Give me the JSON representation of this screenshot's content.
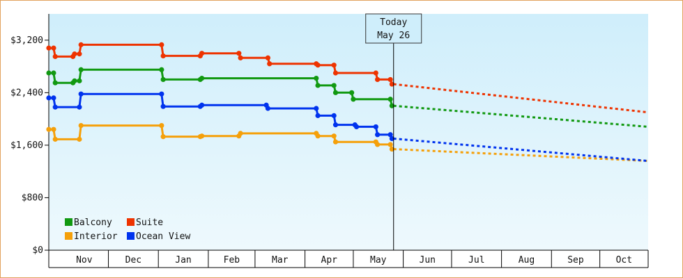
{
  "chart_data": {
    "type": "line",
    "title": "",
    "xlabel": "",
    "ylabel": "",
    "ylim": [
      0,
      3600
    ],
    "xlim": [
      "2023-10-25",
      "2024-10-31"
    ],
    "yticks": [
      0,
      800,
      1600,
      2400,
      3200
    ],
    "ytick_labels": [
      "$0",
      "$800",
      "$1,600",
      "$2,400",
      "$3,200"
    ],
    "month_labels": [
      "Nov",
      "Dec",
      "Jan",
      "Feb",
      "Mar",
      "Apr",
      "May",
      "Jun",
      "Jul",
      "Aug",
      "Sep",
      "Oct"
    ],
    "grid": false,
    "legend_position": "bottom-left",
    "today": {
      "title": "Today",
      "date_label": "May 26",
      "date": "2024-05-26"
    },
    "series": [
      {
        "name": "Balcony",
        "color": "#119911",
        "points": [
          [
            "2023-10-25",
            2700
          ],
          [
            "2023-10-28",
            2700
          ],
          [
            "2023-10-29",
            2550
          ],
          [
            "2023-11-09",
            2550
          ],
          [
            "2023-11-10",
            2580
          ],
          [
            "2023-11-13",
            2580
          ],
          [
            "2023-11-14",
            2750
          ],
          [
            "2024-01-03",
            2750
          ],
          [
            "2024-01-04",
            2600
          ],
          [
            "2024-01-27",
            2600
          ],
          [
            "2024-01-28",
            2620
          ],
          [
            "2024-04-08",
            2620
          ],
          [
            "2024-04-09",
            2510
          ],
          [
            "2024-04-19",
            2510
          ],
          [
            "2024-04-20",
            2400
          ],
          [
            "2024-04-30",
            2400
          ],
          [
            "2024-05-01",
            2300
          ],
          [
            "2024-05-24",
            2300
          ],
          [
            "2024-05-25",
            2200
          ],
          [
            "2024-05-26",
            2200
          ]
        ],
        "forecast": [
          [
            "2024-05-26",
            2200
          ],
          [
            "2024-10-31",
            1880
          ]
        ]
      },
      {
        "name": "Suite",
        "color": "#ee3300",
        "points": [
          [
            "2023-10-25",
            3080
          ],
          [
            "2023-10-28",
            3080
          ],
          [
            "2023-10-29",
            2950
          ],
          [
            "2023-11-09",
            2950
          ],
          [
            "2023-11-10",
            2990
          ],
          [
            "2023-11-13",
            2990
          ],
          [
            "2023-11-14",
            3130
          ],
          [
            "2024-01-03",
            3130
          ],
          [
            "2024-01-04",
            2960
          ],
          [
            "2024-01-27",
            2960
          ],
          [
            "2024-01-28",
            3000
          ],
          [
            "2024-02-20",
            3000
          ],
          [
            "2024-02-21",
            2930
          ],
          [
            "2024-03-09",
            2930
          ],
          [
            "2024-03-10",
            2840
          ],
          [
            "2024-04-08",
            2840
          ],
          [
            "2024-04-09",
            2820
          ],
          [
            "2024-04-19",
            2820
          ],
          [
            "2024-04-20",
            2700
          ],
          [
            "2024-05-15",
            2700
          ],
          [
            "2024-05-16",
            2600
          ],
          [
            "2024-05-24",
            2600
          ],
          [
            "2024-05-25",
            2530
          ],
          [
            "2024-05-26",
            2530
          ]
        ],
        "forecast": [
          [
            "2024-05-26",
            2530
          ],
          [
            "2024-10-31",
            2100
          ]
        ]
      },
      {
        "name": "Interior",
        "color": "#f5a00a",
        "points": [
          [
            "2023-10-25",
            1840
          ],
          [
            "2023-10-28",
            1840
          ],
          [
            "2023-10-29",
            1690
          ],
          [
            "2023-11-13",
            1690
          ],
          [
            "2023-11-14",
            1900
          ],
          [
            "2024-01-03",
            1900
          ],
          [
            "2024-01-04",
            1730
          ],
          [
            "2024-01-27",
            1730
          ],
          [
            "2024-01-28",
            1740
          ],
          [
            "2024-02-20",
            1740
          ],
          [
            "2024-02-21",
            1780
          ],
          [
            "2024-04-08",
            1780
          ],
          [
            "2024-04-09",
            1740
          ],
          [
            "2024-04-19",
            1740
          ],
          [
            "2024-04-20",
            1650
          ],
          [
            "2024-05-15",
            1650
          ],
          [
            "2024-05-16",
            1610
          ],
          [
            "2024-05-24",
            1610
          ],
          [
            "2024-05-25",
            1540
          ],
          [
            "2024-05-26",
            1540
          ]
        ],
        "forecast": [
          [
            "2024-05-26",
            1540
          ],
          [
            "2024-10-31",
            1360
          ]
        ]
      },
      {
        "name": "Ocean View",
        "color": "#0033ee",
        "points": [
          [
            "2023-10-25",
            2320
          ],
          [
            "2023-10-28",
            2320
          ],
          [
            "2023-10-29",
            2180
          ],
          [
            "2023-11-13",
            2180
          ],
          [
            "2023-11-14",
            2380
          ],
          [
            "2024-01-03",
            2380
          ],
          [
            "2024-01-04",
            2190
          ],
          [
            "2024-01-27",
            2190
          ],
          [
            "2024-01-28",
            2210
          ],
          [
            "2024-03-08",
            2210
          ],
          [
            "2024-03-09",
            2160
          ],
          [
            "2024-04-08",
            2160
          ],
          [
            "2024-04-09",
            2050
          ],
          [
            "2024-04-19",
            2050
          ],
          [
            "2024-04-20",
            1910
          ],
          [
            "2024-05-02",
            1910
          ],
          [
            "2024-05-03",
            1880
          ],
          [
            "2024-05-15",
            1880
          ],
          [
            "2024-05-16",
            1760
          ],
          [
            "2024-05-24",
            1760
          ],
          [
            "2024-05-25",
            1700
          ],
          [
            "2024-05-26",
            1700
          ]
        ],
        "forecast": [
          [
            "2024-05-26",
            1700
          ],
          [
            "2024-10-31",
            1360
          ]
        ]
      }
    ]
  }
}
